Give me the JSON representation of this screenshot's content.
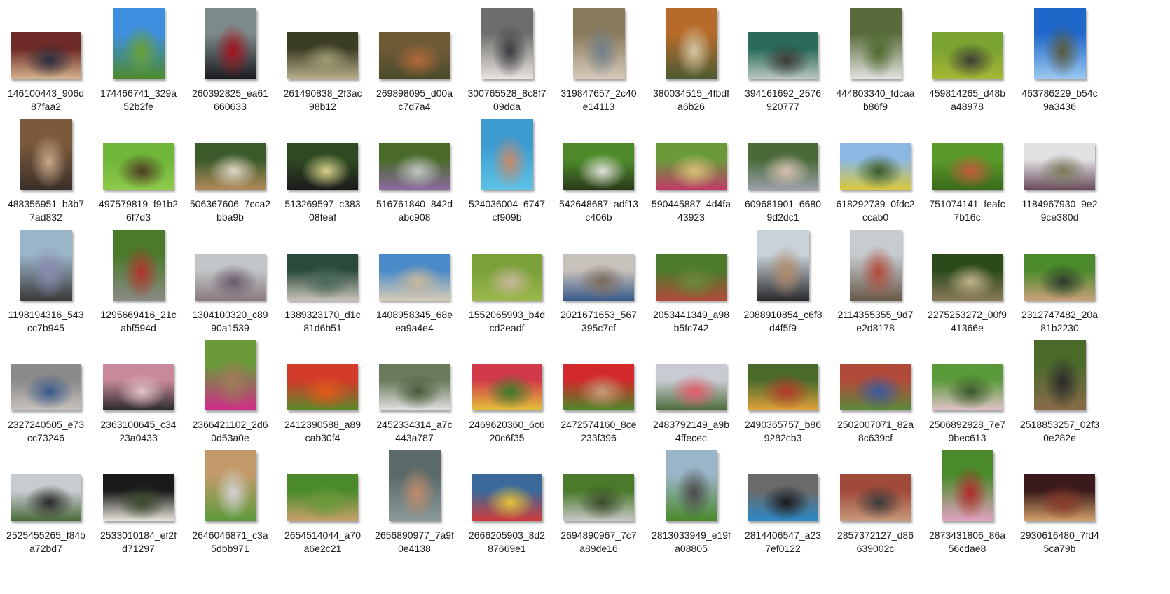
{
  "grid": {
    "items": [
      {
        "line1": "146100443_906d",
        "line2": "87faa2",
        "orientation": "landscape",
        "colors": [
          "#6d2a26",
          "#d6b58e",
          "#2c2d3e"
        ]
      },
      {
        "line1": "174466741_329a",
        "line2": "52b2fe",
        "orientation": "portrait",
        "colors": [
          "#3f8fe0",
          "#4d8a2c",
          "#6aa236"
        ]
      },
      {
        "line1": "260392825_ea61",
        "line2": "660633",
        "orientation": "portrait",
        "colors": [
          "#7d8a8a",
          "#1b1b1f",
          "#a3131e"
        ]
      },
      {
        "line1": "261490838_2f3ac",
        "line2": "98b12",
        "orientation": "landscape",
        "colors": [
          "#3b3d25",
          "#b9b08c",
          "#9e9b73"
        ]
      },
      {
        "line1": "269898095_d00a",
        "line2": "c7d7a4",
        "orientation": "landscape",
        "colors": [
          "#6f5a36",
          "#4a4a2a",
          "#b26a3a"
        ]
      },
      {
        "line1": "300765528_8c8f7",
        "line2": "09dda",
        "orientation": "portrait",
        "colors": [
          "#6c6e6b",
          "#eae4e2",
          "#3a3a3e"
        ]
      },
      {
        "line1": "319847657_2c40",
        "line2": "e14113",
        "orientation": "portrait",
        "colors": [
          "#8a7a5c",
          "#d8cbbb",
          "#6f7f8a"
        ]
      },
      {
        "line1": "380034515_4fbdf",
        "line2": "a6b26",
        "orientation": "portrait",
        "colors": [
          "#b76b2a",
          "#4c5a32",
          "#d7c7a4"
        ]
      },
      {
        "line1": "394161692_2576",
        "line2": "920777",
        "orientation": "landscape",
        "colors": [
          "#2a6b5a",
          "#bbc9c2",
          "#3b3a36"
        ]
      },
      {
        "line1": "444803340_fdcaa",
        "line2": "b86f9",
        "orientation": "portrait",
        "colors": [
          "#5a6b3b",
          "#e2e3e1",
          "#4d6a2c"
        ]
      },
      {
        "line1": "459814265_d48b",
        "line2": "a48978",
        "orientation": "landscape",
        "colors": [
          "#7aa331",
          "#a7b735",
          "#3e3d36"
        ]
      },
      {
        "line1": "463786229_b54c",
        "line2": "9a3436",
        "orientation": "portrait",
        "colors": [
          "#1f67c9",
          "#9cc8f1",
          "#5a5a3a"
        ]
      },
      {
        "line1": "488356951_b3b7",
        "line2": "7ad832",
        "orientation": "portrait",
        "colors": [
          "#7a5a3a",
          "#3a2f2a",
          "#c8a98a"
        ]
      },
      {
        "line1": "497579819_f91b2",
        "line2": "6f7d3",
        "orientation": "landscape",
        "colors": [
          "#6fb63a",
          "#8ec94a",
          "#4e3a22"
        ]
      },
      {
        "line1": "506367606_7cca2",
        "line2": "bba9b",
        "orientation": "landscape",
        "colors": [
          "#3a5a2a",
          "#b48a5a",
          "#e2d6c8"
        ]
      },
      {
        "line1": "513269597_c383",
        "line2": "08feaf",
        "orientation": "landscape",
        "colors": [
          "#2e4a22",
          "#1a1a1a",
          "#d9d38a"
        ]
      },
      {
        "line1": "516761840_842d",
        "line2": "abc908",
        "orientation": "landscape",
        "colors": [
          "#4a6a2a",
          "#8a6aa0",
          "#c2c7c2"
        ]
      },
      {
        "line1": "524036004_6747",
        "line2": "cf909b",
        "orientation": "portrait",
        "colors": [
          "#3b9ad0",
          "#5ec3e6",
          "#c98a6a"
        ]
      },
      {
        "line1": "542648687_adf13",
        "line2": "c406b",
        "orientation": "landscape",
        "colors": [
          "#4e8a2a",
          "#2a3a1a",
          "#dfe2d8"
        ]
      },
      {
        "line1": "590445887_4d4fa",
        "line2": "43923",
        "orientation": "landscape",
        "colors": [
          "#6a9a3a",
          "#c23a6a",
          "#d8c27a"
        ]
      },
      {
        "line1": "609681901_6680",
        "line2": "9d2dc1",
        "orientation": "landscape",
        "colors": [
          "#4a6a3a",
          "#9aa0a8",
          "#d8c2b2"
        ]
      },
      {
        "line1": "618292739_0fdc2",
        "line2": "ccab0",
        "orientation": "landscape",
        "colors": [
          "#8ab8e2",
          "#d8c83a",
          "#3a5a2a"
        ]
      },
      {
        "line1": "751074141_feafc",
        "line2": "7b16c",
        "orientation": "landscape",
        "colors": [
          "#5a9a2a",
          "#3a6a1a",
          "#c25a3a"
        ]
      },
      {
        "line1": "1184967930_9e2",
        "line2": "9ce380d",
        "orientation": "landscape",
        "colors": [
          "#e0e2e4",
          "#6a4a5a",
          "#7a7a5a"
        ]
      },
      {
        "line1": "1198194316_543",
        "line2": "cc7b945",
        "orientation": "portrait",
        "colors": [
          "#9ab4c8",
          "#3a3a3a",
          "#8a8ab0"
        ]
      },
      {
        "line1": "1295669416_21c",
        "line2": "abf594d",
        "orientation": "portrait",
        "colors": [
          "#4a7a2a",
          "#8a8a86",
          "#b2322a"
        ]
      },
      {
        "line1": "1304100320_c89",
        "line2": "90a1539",
        "orientation": "landscape",
        "colors": [
          "#c2c6c8",
          "#8a7a80",
          "#6a5a6a"
        ]
      },
      {
        "line1": "1389323170_d1c",
        "line2": "81d6b51",
        "orientation": "landscape",
        "colors": [
          "#2a4a3a",
          "#c8c2b8",
          "#4a6a5a"
        ]
      },
      {
        "line1": "1408958345_68e",
        "line2": "ea9a4e4",
        "orientation": "landscape",
        "colors": [
          "#4a8ac8",
          "#d8ccb8",
          "#c8b89a"
        ]
      },
      {
        "line1": "1552065993_b4d",
        "line2": "cd2eadf",
        "orientation": "landscape",
        "colors": [
          "#7aa03a",
          "#9ab84a",
          "#c8b69a"
        ]
      },
      {
        "line1": "2021671653_567",
        "line2": "395c7cf",
        "orientation": "landscape",
        "colors": [
          "#c8c2bc",
          "#3a5a8a",
          "#7a6a5a"
        ]
      },
      {
        "line1": "2053441349_a98",
        "line2": "b5fc742",
        "orientation": "landscape",
        "colors": [
          "#4a7a2a",
          "#b24a3a",
          "#6a8a3a"
        ]
      },
      {
        "line1": "2088910854_c6f8",
        "line2": "d4f5f9",
        "orientation": "portrait",
        "colors": [
          "#c8d2d8",
          "#2a2a2e",
          "#b28a6a"
        ]
      },
      {
        "line1": "2114355355_9d7",
        "line2": "e2d8178",
        "orientation": "portrait",
        "colors": [
          "#c6ccd0",
          "#6a5a4a",
          "#b24a3a"
        ]
      },
      {
        "line1": "2275253272_00f9",
        "line2": "41366e",
        "orientation": "landscape",
        "colors": [
          "#2a4a1a",
          "#8a7a5a",
          "#c2b28a"
        ]
      },
      {
        "line1": "2312747482_20a",
        "line2": "81b2230",
        "orientation": "landscape",
        "colors": [
          "#4a8a2a",
          "#c8a07a",
          "#2a3a2a"
        ]
      },
      {
        "line1": "2327240505_e73",
        "line2": "cc73246",
        "orientation": "landscape",
        "colors": [
          "#8a8a8a",
          "#c8c2bc",
          "#3a5a8a"
        ]
      },
      {
        "line1": "2363100645_c34",
        "line2": "23a0433",
        "orientation": "landscape",
        "colors": [
          "#c88a9a",
          "#2a2a2a",
          "#e2c2c8"
        ]
      },
      {
        "line1": "2366421102_2d6",
        "line2": "0d53a0e",
        "orientation": "portrait",
        "colors": [
          "#6a9a3a",
          "#d22a8a",
          "#a07a5a"
        ]
      },
      {
        "line1": "2412390588_a89",
        "line2": "cab30f4",
        "orientation": "landscape",
        "colors": [
          "#d23a2a",
          "#5a8a2a",
          "#e25a1a"
        ]
      },
      {
        "line1": "2452334314_a7c",
        "line2": "443a787",
        "orientation": "landscape",
        "colors": [
          "#6a7a5a",
          "#e2e2e2",
          "#4a5a3a"
        ]
      },
      {
        "line1": "2469620360_6c6",
        "line2": "20c6f35",
        "orientation": "landscape",
        "colors": [
          "#d23a4a",
          "#e2c23a",
          "#3a7a2a"
        ]
      },
      {
        "line1": "2472574160_8ce",
        "line2": "233f396",
        "orientation": "landscape",
        "colors": [
          "#d22a2a",
          "#4a8a2a",
          "#c89a7a"
        ]
      },
      {
        "line1": "2483792149_a9b",
        "line2": "4ffecec",
        "orientation": "landscape",
        "colors": [
          "#c8ccd2",
          "#4a6a3a",
          "#e25a6a"
        ]
      },
      {
        "line1": "2490365757_b86",
        "line2": "9282cb3",
        "orientation": "landscape",
        "colors": [
          "#4a6a2a",
          "#e2a23a",
          "#b23a2a"
        ]
      },
      {
        "line1": "2502007071_82a",
        "line2": "8c639cf",
        "orientation": "landscape",
        "colors": [
          "#b24a3a",
          "#5a8a3a",
          "#3a5aa0"
        ]
      },
      {
        "line1": "2506892928_7e7",
        "line2": "9bec613",
        "orientation": "landscape",
        "colors": [
          "#5a9a3a",
          "#e2c2c8",
          "#3a5a2a"
        ]
      },
      {
        "line1": "2518853257_02f3",
        "line2": "0e282e",
        "orientation": "portrait",
        "colors": [
          "#4a6a2a",
          "#8a6a4a",
          "#2a2a2a"
        ]
      },
      {
        "line1": "2525455265_f84b",
        "line2": "a72bd7",
        "orientation": "landscape",
        "colors": [
          "#c8ccd0",
          "#4a6a3a",
          "#2a2a2a"
        ]
      },
      {
        "line1": "2533010184_ef2f",
        "line2": "d71297",
        "orientation": "landscape",
        "colors": [
          "#1a1a1a",
          "#e8e6da",
          "#3a4a2a"
        ]
      },
      {
        "line1": "2646046871_c3a",
        "line2": "5dbb971",
        "orientation": "portrait",
        "colors": [
          "#c29a6a",
          "#5a9a3a",
          "#d2d2d2"
        ]
      },
      {
        "line1": "2654514044_a70",
        "line2": "a6e2c21",
        "orientation": "landscape",
        "colors": [
          "#4a8a2a",
          "#c8a06a",
          "#6a9a3a"
        ]
      },
      {
        "line1": "2656890977_7a9f",
        "line2": "0e4138",
        "orientation": "portrait",
        "colors": [
          "#5a6a6a",
          "#8a9a9a",
          "#c28a6a"
        ]
      },
      {
        "line1": "2666205903_8d2",
        "line2": "87669e1",
        "orientation": "landscape",
        "colors": [
          "#3a6a9a",
          "#d23a3a",
          "#e2c23a"
        ]
      },
      {
        "line1": "2694890967_7c7",
        "line2": "a89de16",
        "orientation": "landscape",
        "colors": [
          "#4a7a2a",
          "#c8c8c8",
          "#3a4a2a"
        ]
      },
      {
        "line1": "2813033949_e19f",
        "line2": "a08805",
        "orientation": "portrait",
        "colors": [
          "#9ab4c8",
          "#4a8a2a",
          "#4a4a4a"
        ]
      },
      {
        "line1": "2814406547_a23",
        "line2": "7ef0122",
        "orientation": "landscape",
        "colors": [
          "#6a6a6a",
          "#2a8ac8",
          "#1a1a1a"
        ]
      },
      {
        "line1": "2857372127_d86",
        "line2": "639002c",
        "orientation": "landscape",
        "colors": [
          "#a04a3a",
          "#c89a7a",
          "#3a3a3a"
        ]
      },
      {
        "line1": "2873431806_86a",
        "line2": "56cdae8",
        "orientation": "portrait",
        "colors": [
          "#4a8a2a",
          "#e2a2c2",
          "#b22a2a"
        ]
      },
      {
        "line1": "2930616480_7fd4",
        "line2": "5ca79b",
        "orientation": "landscape",
        "colors": [
          "#3a1a1a",
          "#d2a06a",
          "#8a3a2a"
        ]
      }
    ]
  }
}
